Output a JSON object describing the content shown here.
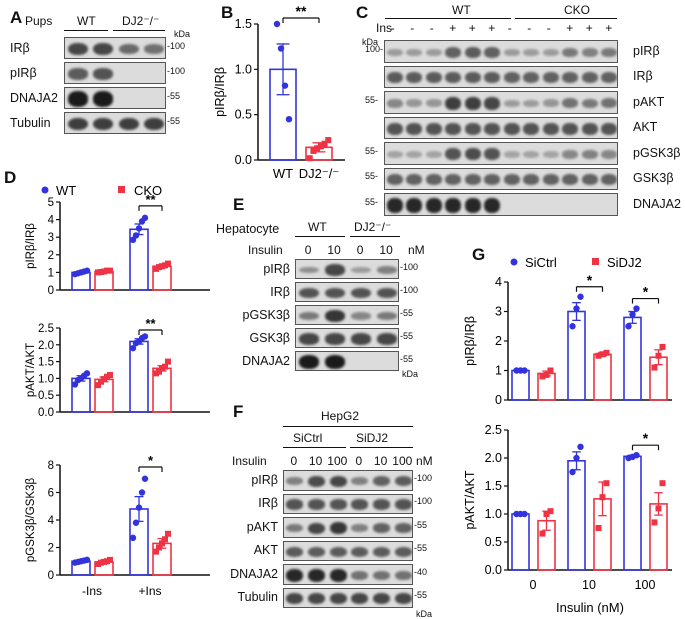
{
  "panels": {
    "A": {
      "label": "A",
      "pups_label": "Pups",
      "groups": [
        "WT",
        "DJ2⁻/⁻"
      ],
      "kda": "kDa",
      "rows": [
        {
          "name": "IRβ",
          "mw": "100",
          "bands": [
            0.7,
            0.7,
            0.45,
            0.4
          ]
        },
        {
          "name": "pIRβ",
          "mw": "100",
          "bands": [
            0.55,
            0.6,
            0.0,
            0.0
          ]
        },
        {
          "name": "DNAJA2",
          "mw": "55",
          "bands": [
            1.0,
            1.0,
            0.0,
            0.0
          ]
        },
        {
          "name": "Tubulin",
          "mw": "55",
          "bands": [
            0.75,
            0.75,
            0.75,
            0.75
          ]
        }
      ]
    },
    "C": {
      "label": "C",
      "groups": [
        "WT",
        "CKO"
      ],
      "ins_label": "Ins",
      "ins_signs": [
        "-",
        "-",
        "-",
        "+",
        "+",
        "+",
        "-",
        "-",
        "-",
        "+",
        "+",
        "+"
      ],
      "kda": "kDa",
      "rows": [
        {
          "name": "pIRβ",
          "mw": "100",
          "bands": [
            0.1,
            0.1,
            0.1,
            0.5,
            0.55,
            0.5,
            0.1,
            0.1,
            0.1,
            0.35,
            0.3,
            0.35
          ]
        },
        {
          "name": "IRβ",
          "mw": "",
          "bands": [
            0.55,
            0.55,
            0.55,
            0.55,
            0.55,
            0.55,
            0.5,
            0.5,
            0.5,
            0.5,
            0.5,
            0.5
          ]
        },
        {
          "name": "pAKT",
          "mw": "55",
          "bands": [
            0.25,
            0.15,
            0.15,
            0.75,
            0.75,
            0.7,
            0.1,
            0.1,
            0.15,
            0.4,
            0.35,
            0.4
          ]
        },
        {
          "name": "AKT",
          "mw": "",
          "bands": [
            0.6,
            0.6,
            0.6,
            0.6,
            0.6,
            0.6,
            0.6,
            0.6,
            0.6,
            0.6,
            0.6,
            0.6
          ]
        },
        {
          "name": "pGSK3β",
          "mw": "55",
          "bands": [
            0.05,
            0.05,
            0.05,
            0.6,
            0.65,
            0.6,
            0.05,
            0.05,
            0.05,
            0.25,
            0.3,
            0.25
          ]
        },
        {
          "name": "GSK3β",
          "mw": "55",
          "bands": [
            0.5,
            0.5,
            0.5,
            0.5,
            0.5,
            0.5,
            0.5,
            0.5,
            0.5,
            0.5,
            0.5,
            0.5
          ]
        },
        {
          "name": "DNAJA2",
          "mw": "55",
          "bands": [
            0.9,
            0.9,
            0.9,
            0.9,
            0.9,
            0.9,
            0.0,
            0.0,
            0.0,
            0.0,
            0.0,
            0.0
          ]
        }
      ]
    },
    "E": {
      "label": "E",
      "cell_label": "Hepatocyte",
      "groups": [
        "WT",
        "DJ2⁻/⁻"
      ],
      "insulin_label": "Insulin",
      "doses": [
        "0",
        "10",
        "0",
        "10"
      ],
      "unit": "nM",
      "kda": "kDa",
      "rows": [
        {
          "name": "pIRβ",
          "mw": "100",
          "bands": [
            0.2,
            0.7,
            0.1,
            0.3
          ]
        },
        {
          "name": "IRβ",
          "mw": "100",
          "bands": [
            0.6,
            0.6,
            0.6,
            0.6
          ]
        },
        {
          "name": "pGSK3β",
          "mw": "55",
          "bands": [
            0.35,
            0.8,
            0.25,
            0.35
          ]
        },
        {
          "name": "GSK3β",
          "mw": "55",
          "bands": [
            0.7,
            0.7,
            0.7,
            0.7
          ]
        },
        {
          "name": "DNAJA2",
          "mw": "55",
          "bands": [
            1.0,
            1.0,
            0.0,
            0.0
          ]
        }
      ]
    },
    "F": {
      "label": "F",
      "cell_label": "HepG2",
      "groups": [
        "SiCtrl",
        "SiDJ2"
      ],
      "insulin_label": "Insulin",
      "doses": [
        "0",
        "10",
        "100",
        "0",
        "10",
        "100"
      ],
      "unit": "nM",
      "kda": "kDa",
      "rows": [
        {
          "name": "pIRβ",
          "mw": "100",
          "bands": [
            0.3,
            0.65,
            0.7,
            0.3,
            0.5,
            0.55
          ]
        },
        {
          "name": "IRβ",
          "mw": "100",
          "bands": [
            0.6,
            0.6,
            0.6,
            0.6,
            0.6,
            0.6
          ]
        },
        {
          "name": "pAKT",
          "mw": "55",
          "bands": [
            0.35,
            0.7,
            0.8,
            0.3,
            0.5,
            0.5
          ]
        },
        {
          "name": "AKT",
          "mw": "55",
          "bands": [
            0.55,
            0.55,
            0.55,
            0.55,
            0.55,
            0.55
          ]
        },
        {
          "name": "DNAJA2",
          "mw": "40",
          "bands": [
            0.9,
            0.9,
            0.9,
            0.4,
            0.4,
            0.4
          ]
        },
        {
          "name": "Tubulin",
          "mw": "55",
          "bands": [
            0.7,
            0.7,
            0.7,
            0.7,
            0.7,
            0.7
          ]
        }
      ]
    }
  },
  "chart_data": [
    {
      "id": "B",
      "label": "B",
      "type": "bar",
      "categories": [
        "WT",
        "DJ2⁻/⁻"
      ],
      "values": [
        1.0,
        0.14
      ],
      "errors": [
        0.28,
        0.05
      ],
      "points": [
        [
          1.5,
          1.23,
          0.82,
          0.45
        ],
        [
          0.02,
          0.1,
          0.13,
          0.15,
          0.18,
          0.22
        ]
      ],
      "colors": [
        "#3333dd",
        "#ee3344"
      ],
      "ylabel": "pIRβ/IRβ",
      "ylim": [
        0,
        1.5
      ],
      "yticks": [
        "0.0",
        "0.5",
        "1.0",
        "1.5"
      ],
      "significance": "**"
    },
    {
      "id": "D",
      "label": "D",
      "type": "bar",
      "legend": [
        "WT",
        "CKO"
      ],
      "colors": [
        "#3333dd",
        "#ee3344"
      ],
      "groups": [
        "-Ins",
        "+Ins"
      ],
      "subplots": [
        {
          "ylabel": "pIRβ/IRβ",
          "ylim": [
            0,
            5
          ],
          "yticks": [
            "0",
            "1",
            "2",
            "3",
            "4",
            "5"
          ],
          "values": [
            [
              1.0,
              1.05
            ],
            [
              3.45,
              1.35
            ]
          ],
          "errors": [
            [
              0.06,
              0.05
            ],
            [
              0.3,
              0.08
            ]
          ],
          "points": [
            [
              [
                0.9,
                0.95,
                1.0,
                1.05,
                1.1
              ],
              [
                1.0,
                1.02,
                1.05,
                1.1,
                1.1
              ]
            ],
            [
              [
                2.85,
                3.1,
                3.5,
                3.9,
                4.1
              ],
              [
                1.2,
                1.3,
                1.35,
                1.4,
                1.5
              ]
            ]
          ],
          "significance": "**"
        },
        {
          "ylabel": "pAKT/AKT",
          "ylim": [
            0,
            2.5
          ],
          "yticks": [
            "0.0",
            "0.5",
            "1.0",
            "1.5",
            "2.0",
            "2.5"
          ],
          "values": [
            [
              1.0,
              0.97
            ],
            [
              2.1,
              1.3
            ]
          ],
          "errors": [
            [
              0.08,
              0.07
            ],
            [
              0.08,
              0.08
            ]
          ],
          "points": [
            [
              [
                0.82,
                0.95,
                1.0,
                1.08,
                1.15
              ],
              [
                0.8,
                0.9,
                0.98,
                1.05,
                1.1
              ]
            ],
            [
              [
                1.9,
                2.05,
                2.1,
                2.2,
                2.25
              ],
              [
                1.15,
                1.2,
                1.3,
                1.35,
                1.5
              ]
            ]
          ],
          "significance": "**"
        },
        {
          "ylabel": "pGSK3β/GSK3β",
          "ylim": [
            0,
            8
          ],
          "yticks": [
            "0",
            "2",
            "4",
            "6",
            "8"
          ],
          "values": [
            [
              1.0,
              0.95
            ],
            [
              4.8,
              2.3
            ]
          ],
          "errors": [
            [
              0.05,
              0.08
            ],
            [
              0.9,
              0.35
            ]
          ],
          "points": [
            [
              [
                0.9,
                0.95,
                1.0,
                1.05,
                1.1
              ],
              [
                0.8,
                0.9,
                0.95,
                1.0,
                1.1
              ]
            ],
            [
              [
                2.7,
                3.8,
                4.9,
                6.0,
                7.0
              ],
              [
                1.7,
                2.0,
                2.3,
                2.6,
                3.0
              ]
            ]
          ],
          "significance": "*"
        }
      ]
    },
    {
      "id": "G",
      "label": "G",
      "type": "bar",
      "legend": [
        "SiCtrl",
        "SiDJ2"
      ],
      "colors": [
        "#3333dd",
        "#ee3344"
      ],
      "groups": [
        "0",
        "10",
        "100"
      ],
      "xlabel": "Insulin (nM)",
      "subplots": [
        {
          "ylabel": "pIRβ/IRβ",
          "ylim": [
            0,
            4
          ],
          "yticks": [
            "0",
            "1",
            "2",
            "3",
            "4"
          ],
          "values": [
            [
              1.0,
              0.9
            ],
            [
              3.0,
              1.55
            ],
            [
              2.8,
              1.45
            ]
          ],
          "errors": [
            [
              0.02,
              0.08
            ],
            [
              0.3,
              0.06
            ],
            [
              0.2,
              0.25
            ]
          ],
          "points": [
            [
              [
                1.0,
                1.0,
                1.0
              ],
              [
                0.8,
                0.85,
                1.0
              ]
            ],
            [
              [
                2.5,
                3.1,
                3.5
              ],
              [
                1.5,
                1.55,
                1.6
              ]
            ],
            [
              [
                2.5,
                2.9,
                3.1
              ],
              [
                1.1,
                1.5,
                1.8
              ]
            ]
          ],
          "significance": [
            null,
            "*",
            "*"
          ]
        },
        {
          "ylabel": "pAKT/AKT",
          "ylim": [
            0,
            2.5
          ],
          "yticks": [
            "0.0",
            "0.5",
            "1.0",
            "1.5",
            "2.0",
            "2.5"
          ],
          "values": [
            [
              1.0,
              0.88
            ],
            [
              1.95,
              1.27
            ],
            [
              2.03,
              1.18
            ]
          ],
          "errors": [
            [
              0.02,
              0.17
            ],
            [
              0.16,
              0.3
            ],
            [
              0.02,
              0.2
            ]
          ],
          "points": [
            [
              [
                1.0,
                1.0,
                1.0
              ],
              [
                0.65,
                1.0,
                1.05
              ]
            ],
            [
              [
                1.75,
                2.0,
                2.2
              ],
              [
                0.75,
                1.3,
                1.55
              ]
            ],
            [
              [
                2.0,
                2.02,
                2.05
              ],
              [
                0.85,
                1.1,
                1.55
              ]
            ]
          ],
          "significance": [
            null,
            null,
            "*"
          ]
        }
      ]
    }
  ]
}
